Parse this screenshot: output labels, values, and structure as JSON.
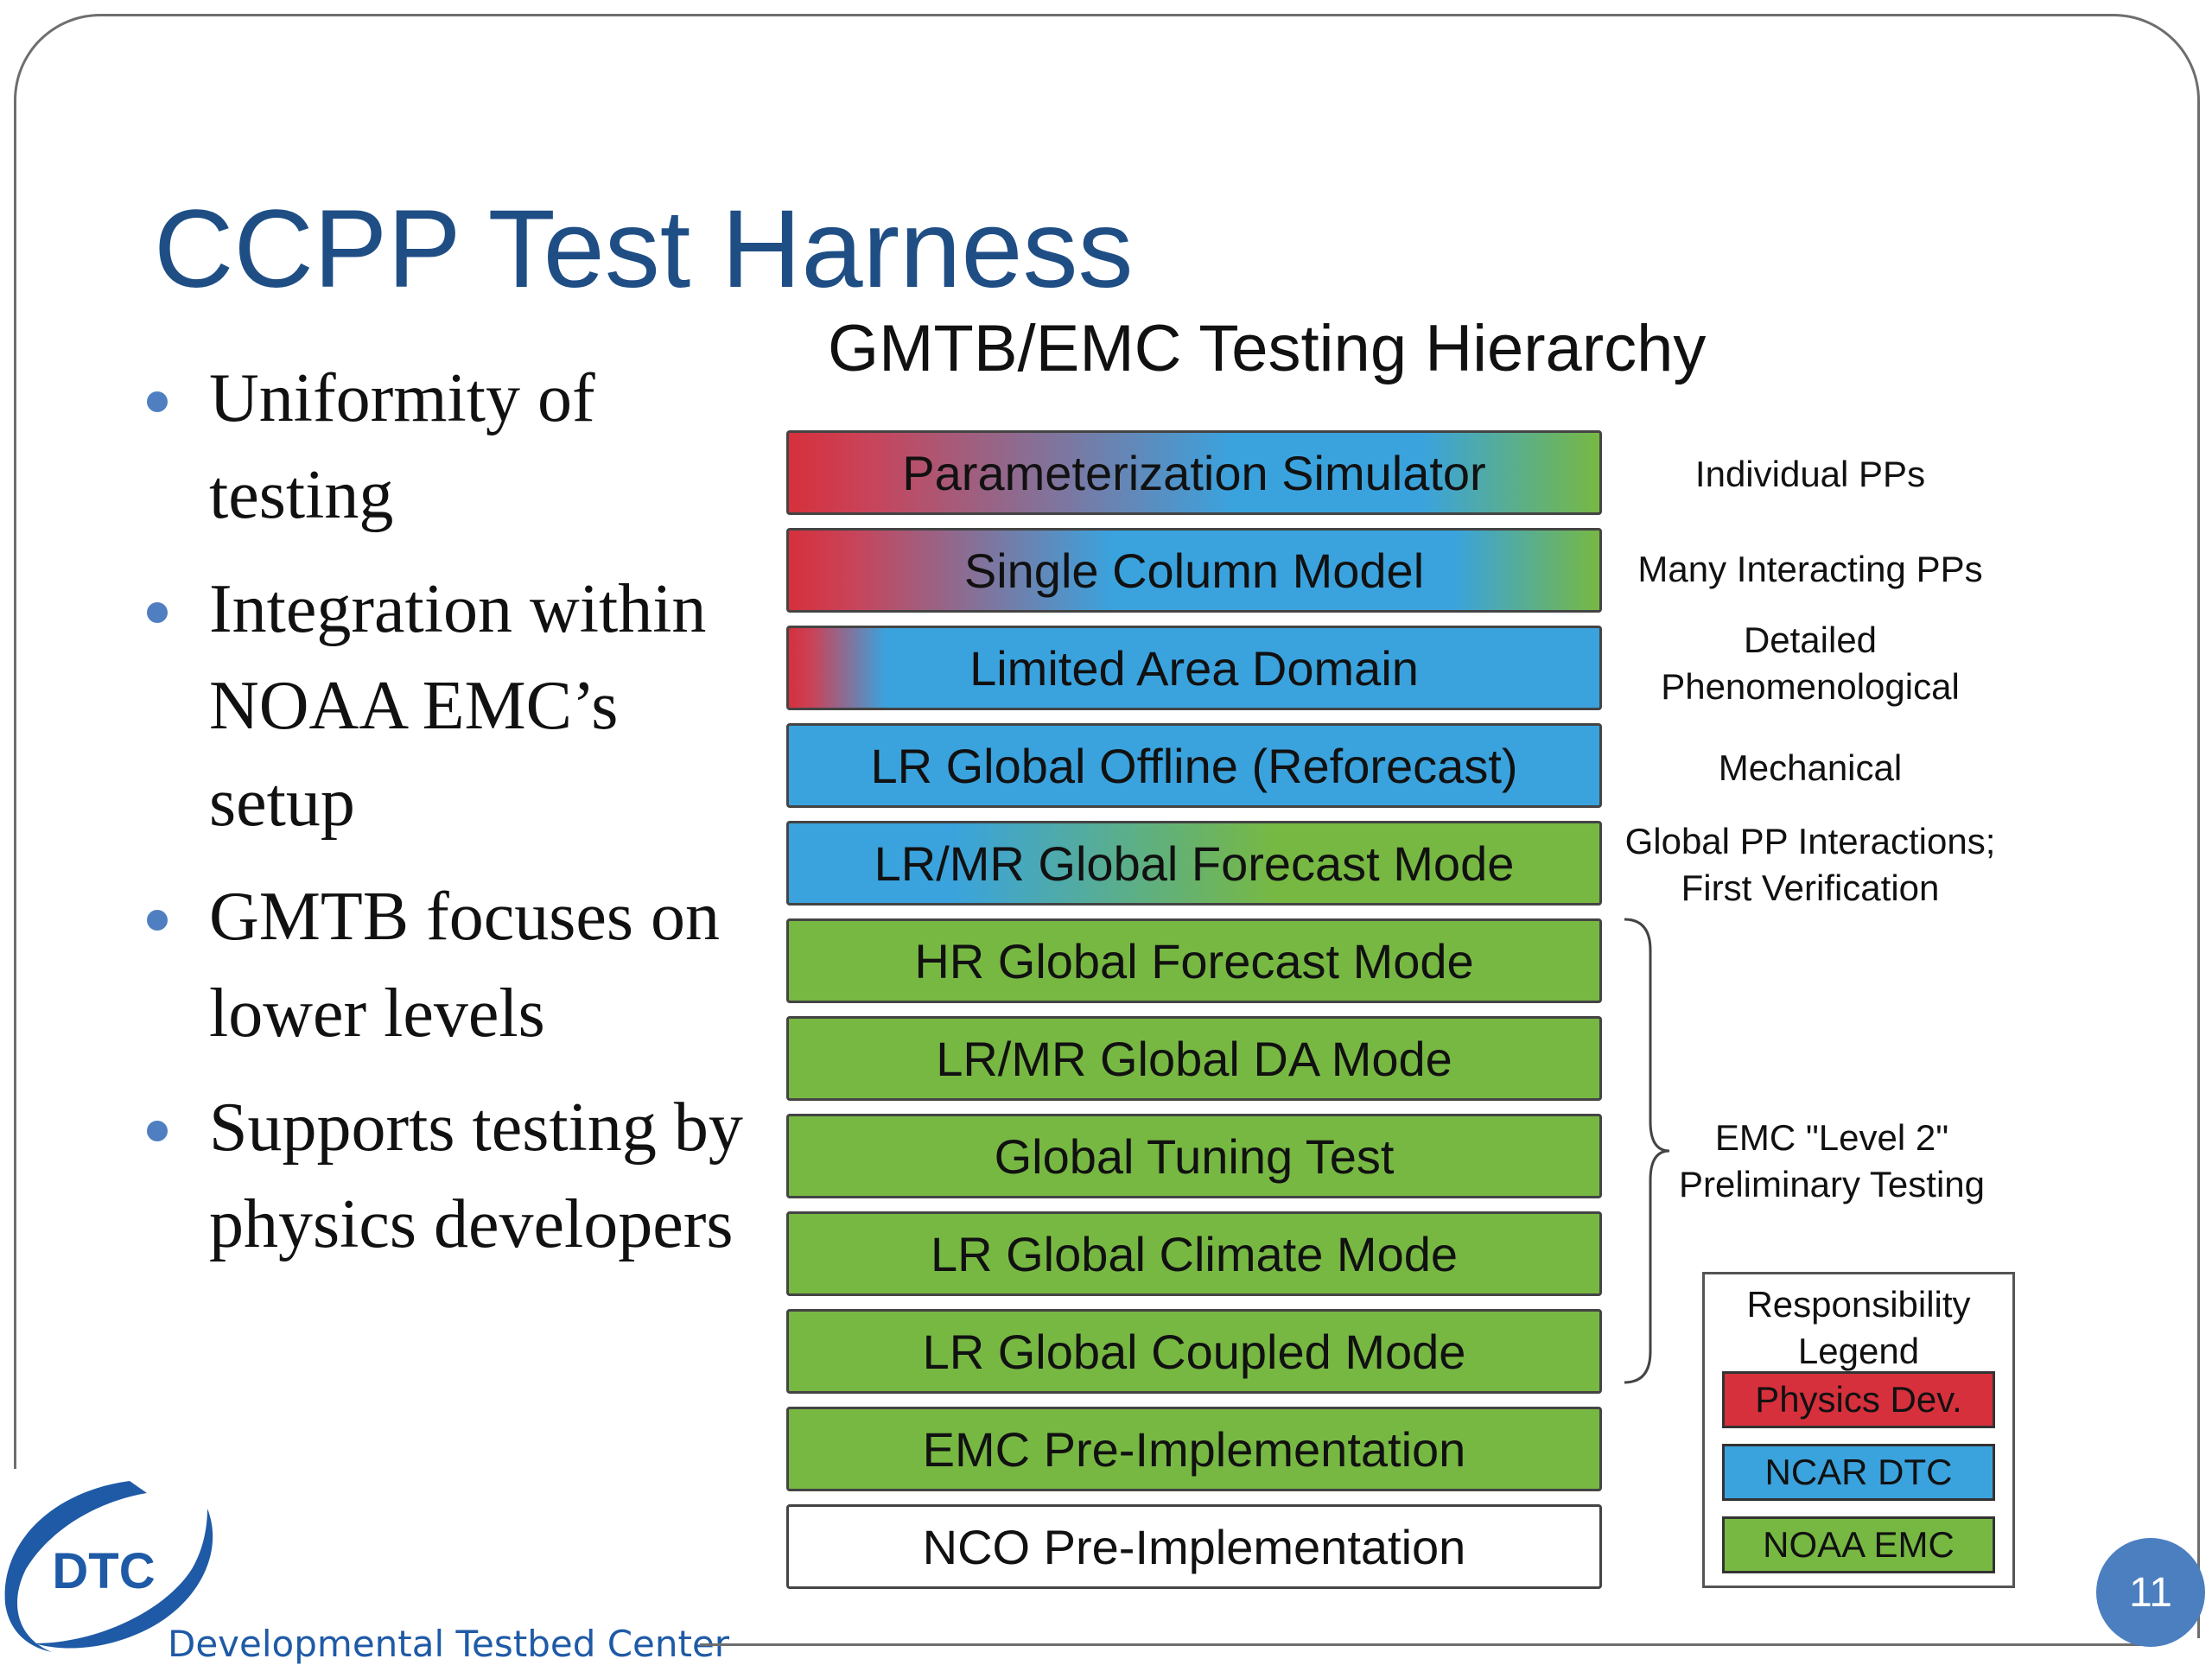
{
  "slide": {
    "title": "CCPP Test Harness",
    "page_number": "11"
  },
  "bullets": [
    "Uniformity of testing",
    "Integration within NOAA EMC’s setup",
    "GMTB focuses on lower levels",
    "Supports testing by physics developers"
  ],
  "diagram": {
    "title": "GMTB/EMC Testing Hierarchy",
    "levels": [
      {
        "label": "Parameterization Simulator"
      },
      {
        "label": "Single Column Model"
      },
      {
        "label": "Limited Area Domain"
      },
      {
        "label": "LR Global Offline (Reforecast)"
      },
      {
        "label": "LR/MR Global Forecast Mode"
      },
      {
        "label": "HR Global Forecast Mode"
      },
      {
        "label": "LR/MR Global DA Mode"
      },
      {
        "label": "Global Tuning Test"
      },
      {
        "label": "LR Global Climate Mode"
      },
      {
        "label": "LR Global Coupled Mode"
      },
      {
        "label": "EMC Pre-Implementation"
      },
      {
        "label": "NCO Pre-Implementation"
      }
    ],
    "notes": [
      {
        "line1": "Individual PPs",
        "line2": ""
      },
      {
        "line1": "Many Interacting PPs",
        "line2": ""
      },
      {
        "line1": "Detailed",
        "line2": "Phenomenological"
      },
      {
        "line1": "Mechanical",
        "line2": ""
      },
      {
        "line1": "Global PP Interactions;",
        "line2": "First Verification"
      }
    ],
    "brace_note": {
      "line1": "EMC \"Level 2\"",
      "line2": "Preliminary Testing"
    },
    "legend": {
      "title_line1": "Responsibility",
      "title_line2": "Legend",
      "items": [
        {
          "label": "Physics Dev.",
          "color": "#d6303c"
        },
        {
          "label": "NCAR DTC",
          "color": "#3aa3de"
        },
        {
          "label": "NOAA EMC",
          "color": "#77b843"
        }
      ]
    }
  },
  "footer": {
    "logo_text": "DTC",
    "org_name": "Developmental Testbed Center"
  }
}
